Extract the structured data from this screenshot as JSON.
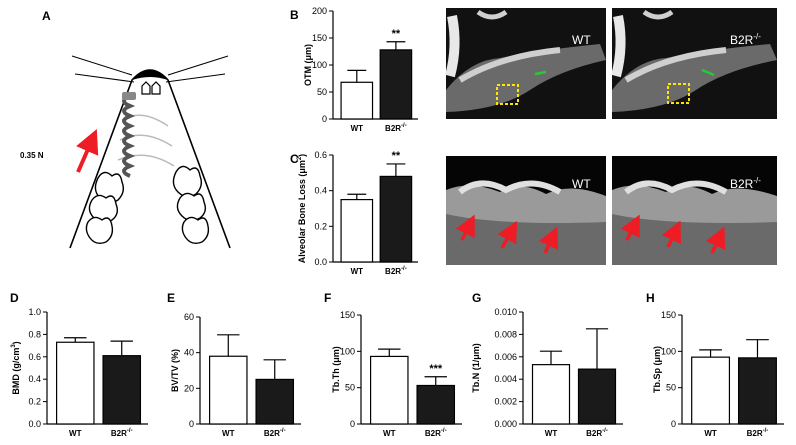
{
  "panels": {
    "A": {
      "label": "A",
      "force_label": "0.35 N",
      "arrow_color": "#ee1c24"
    },
    "B_images": {
      "left": "WT",
      "right_base": "B2R",
      "right_sup": "-/-",
      "marker_color": "#ffe600",
      "line_color": "#22cc33"
    },
    "C_images": {
      "left": "WT",
      "right_base": "B2R",
      "right_sup": "-/-",
      "arrow_color": "#ee1c24"
    }
  },
  "colors": {
    "wt_fill": "#ffffff",
    "b2r_fill": "#1a1a1a",
    "axis": "#000000"
  },
  "chart_data": [
    {
      "panel": "B",
      "type": "bar",
      "ylabel": "OTM (μm)",
      "categories": [
        "WT",
        "B2R-/-"
      ],
      "values": [
        68,
        128
      ],
      "errors": [
        22,
        15
      ],
      "ylim": [
        0,
        200
      ],
      "yticks": [
        "0",
        "50",
        "100",
        "150",
        "200"
      ],
      "significance": "**"
    },
    {
      "panel": "C",
      "type": "bar",
      "ylabel": "Alveolar Bone Loss (μm²)",
      "categories": [
        "WT",
        "B2R-/-"
      ],
      "values": [
        0.35,
        0.48
      ],
      "errors": [
        0.03,
        0.07
      ],
      "ylim": [
        0,
        0.6
      ],
      "yticks": [
        "0.0",
        "0.2",
        "0.4",
        "0.6"
      ],
      "significance": "**"
    },
    {
      "panel": "D",
      "type": "bar",
      "ylabel": "BMD (g/cm³)",
      "categories": [
        "WT",
        "B2R-/-"
      ],
      "values": [
        0.73,
        0.61
      ],
      "errors": [
        0.04,
        0.13
      ],
      "ylim": [
        0,
        1.0
      ],
      "yticks": [
        "0.0",
        "0.2",
        "0.4",
        "0.6",
        "0.8",
        "1.0"
      ],
      "significance": ""
    },
    {
      "panel": "E",
      "type": "bar",
      "ylabel": "BV/TV (%)",
      "categories": [
        "WT",
        "B2R-/-"
      ],
      "values": [
        38,
        25
      ],
      "errors": [
        12,
        11
      ],
      "ylim": [
        0,
        60
      ],
      "yticks": [
        "0",
        "20",
        "40",
        "60"
      ],
      "significance": ""
    },
    {
      "panel": "F",
      "type": "bar",
      "ylabel": "Tb.Th (μm)",
      "categories": [
        "WT",
        "B2R-/-"
      ],
      "values": [
        93,
        53
      ],
      "errors": [
        10,
        12
      ],
      "ylim": [
        0,
        150
      ],
      "yticks": [
        "0",
        "50",
        "100",
        "150"
      ],
      "significance": "***"
    },
    {
      "panel": "G",
      "type": "bar",
      "ylabel": "Tb.N (1/μm)",
      "categories": [
        "WT",
        "B2R-/-"
      ],
      "values": [
        0.0053,
        0.0049
      ],
      "errors": [
        0.0012,
        0.0036
      ],
      "ylim": [
        0,
        0.01
      ],
      "yticks": [
        "0.000",
        "0.002",
        "0.004",
        "0.006",
        "0.008",
        "0.010"
      ],
      "significance": ""
    },
    {
      "panel": "H",
      "type": "bar",
      "ylabel": "Tb.Sp (μm)",
      "categories": [
        "WT",
        "B2R-/-"
      ],
      "values": [
        92,
        91
      ],
      "errors": [
        10,
        25
      ],
      "ylim": [
        0,
        150
      ],
      "yticks": [
        "0",
        "50",
        "100",
        "150"
      ],
      "significance": ""
    }
  ]
}
